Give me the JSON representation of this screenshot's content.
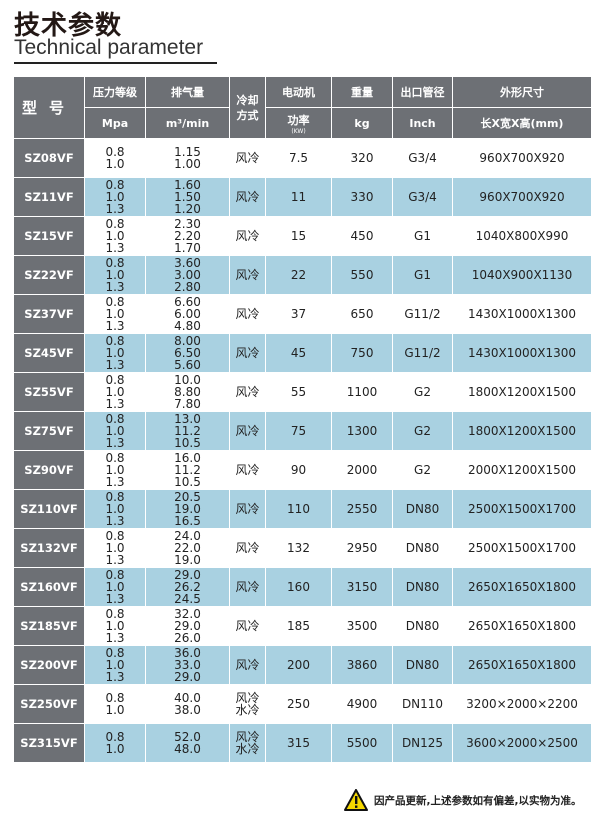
{
  "title": "技术参数",
  "subtitle": "Technical parameter",
  "headers": {
    "model": "型号",
    "pressure": "压力等级",
    "pressure_unit": "Mpa",
    "flow": "排气量",
    "flow_unit": "m³/min",
    "cooling": "冷却方式",
    "motor": "电动机",
    "power": "功率",
    "power_unit": "(KW)",
    "weight": "重量",
    "weight_unit": "kg",
    "outlet": "出口管径",
    "outlet_unit": "Inch",
    "dims": "外形尺寸",
    "dims_unit": "长X宽X高(mm)"
  },
  "rows": [
    {
      "model": "SZ08VF",
      "pressure": "0.8\n1.0",
      "flow": "1.15\n1.00",
      "cooling": "风冷",
      "power": "7.5",
      "weight": "320",
      "outlet": "G3/4",
      "dims": "960X700X920"
    },
    {
      "model": "SZ11VF",
      "pressure": "0.8\n1.0\n1.3",
      "flow": "1.60\n1.50\n1.20",
      "cooling": "风冷",
      "power": "11",
      "weight": "330",
      "outlet": "G3/4",
      "dims": "960X700X920"
    },
    {
      "model": "SZ15VF",
      "pressure": "0.8\n1.0\n1.3",
      "flow": "2.30\n2.20\n1.70",
      "cooling": "风冷",
      "power": "15",
      "weight": "450",
      "outlet": "G1",
      "dims": "1040X800X990"
    },
    {
      "model": "SZ22VF",
      "pressure": "0.8\n1.0\n1.3",
      "flow": "3.60\n3.00\n2.80",
      "cooling": "风冷",
      "power": "22",
      "weight": "550",
      "outlet": "G1",
      "dims": "1040X900X1130"
    },
    {
      "model": "SZ37VF",
      "pressure": "0.8\n1.0\n1.3",
      "flow": "6.60\n6.00\n4.80",
      "cooling": "风冷",
      "power": "37",
      "weight": "650",
      "outlet": "G11/2",
      "dims": "1430X1000X1300"
    },
    {
      "model": "SZ45VF",
      "pressure": "0.8\n1.0\n1.3",
      "flow": "8.00\n6.50\n5.60",
      "cooling": "风冷",
      "power": "45",
      "weight": "750",
      "outlet": "G11/2",
      "dims": "1430X1000X1300"
    },
    {
      "model": "SZ55VF",
      "pressure": "0.8\n1.0\n1.3",
      "flow": "10.0\n8.80\n7.80",
      "cooling": "风冷",
      "power": "55",
      "weight": "1100",
      "outlet": "G2",
      "dims": "1800X1200X1500"
    },
    {
      "model": "SZ75VF",
      "pressure": "0.8\n1.0\n1.3",
      "flow": "13.0\n11.2\n10.5",
      "cooling": "风冷",
      "power": "75",
      "weight": "1300",
      "outlet": "G2",
      "dims": "1800X1200X1500"
    },
    {
      "model": "SZ90VF",
      "pressure": "0.8\n1.0\n1.3",
      "flow": "16.0\n11.2\n10.5",
      "cooling": "风冷",
      "power": "90",
      "weight": "2000",
      "outlet": "G2",
      "dims": "2000X1200X1500"
    },
    {
      "model": "SZ110VF",
      "pressure": "0.8\n1.0\n1.3",
      "flow": "20.5\n19.0\n16.5",
      "cooling": "风冷",
      "power": "110",
      "weight": "2550",
      "outlet": "DN80",
      "dims": "2500X1500X1700"
    },
    {
      "model": "SZ132VF",
      "pressure": "0.8\n1.0\n1.3",
      "flow": "24.0\n22.0\n19.0",
      "cooling": "风冷",
      "power": "132",
      "weight": "2950",
      "outlet": "DN80",
      "dims": "2500X1500X1700"
    },
    {
      "model": "SZ160VF",
      "pressure": "0.8\n1.0\n1.3",
      "flow": "29.0\n26.2\n24.5",
      "cooling": "风冷",
      "power": "160",
      "weight": "3150",
      "outlet": "DN80",
      "dims": "2650X1650X1800"
    },
    {
      "model": "SZ185VF",
      "pressure": "0.8\n1.0\n1.3",
      "flow": "32.0\n29.0\n26.0",
      "cooling": "风冷",
      "power": "185",
      "weight": "3500",
      "outlet": "DN80",
      "dims": "2650X1650X1800"
    },
    {
      "model": "SZ200VF",
      "pressure": "0.8\n1.0\n1.3",
      "flow": "36.0\n33.0\n29.0",
      "cooling": "风冷",
      "power": "200",
      "weight": "3860",
      "outlet": "DN80",
      "dims": "2650X1650X1800"
    },
    {
      "model": "SZ250VF",
      "pressure": "0.8\n1.0",
      "flow": "40.0\n38.0",
      "cooling": "风冷\n水冷",
      "power": "250",
      "weight": "4900",
      "outlet": "DN110",
      "dims": "3200×2000×2200"
    },
    {
      "model": "SZ315VF",
      "pressure": "0.8\n1.0",
      "flow": "52.0\n48.0",
      "cooling": "风冷\n水冷",
      "power": "315",
      "weight": "5500",
      "outlet": "DN125",
      "dims": "3600×2000×2500"
    }
  ],
  "note": "因产品更新,上述参数如有偏差,以实物为准。",
  "colors": {
    "header_gray": "#6d7075",
    "row_blue": "#a9d1e1",
    "row_white": "#ffffff",
    "warning_yellow": "#f5d800"
  }
}
